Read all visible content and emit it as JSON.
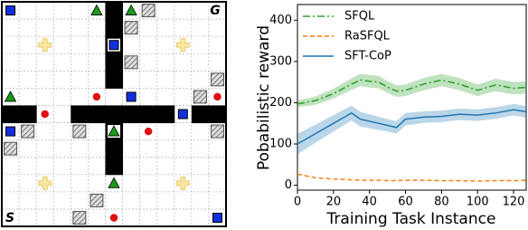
{
  "gridworld": {
    "goal_label": "G",
    "start_label": "S"
  },
  "chart_data": {
    "type": "line",
    "ylabel": "Pobabilistic reward",
    "xlabel": "Training Task Instance",
    "x": [
      0,
      10,
      20,
      30,
      35,
      40,
      45,
      50,
      55,
      60,
      70,
      80,
      90,
      100,
      110,
      120,
      127
    ],
    "xlim": [
      0,
      127
    ],
    "xticks": [
      0,
      20,
      40,
      60,
      80,
      100,
      120
    ],
    "ylim": [
      -12,
      438
    ],
    "yticks": [
      0,
      100,
      200,
      300,
      400
    ],
    "legend": "upper left",
    "series": [
      {
        "name": "SFQL",
        "color": "#2ca02c",
        "linestyle": "dashdot",
        "values": [
          197,
          205,
          222,
          245,
          255,
          252,
          250,
          238,
          228,
          230,
          245,
          255,
          245,
          230,
          243,
          235,
          237
        ],
        "error": [
          8,
          10,
          12,
          14,
          15,
          15,
          15,
          14,
          14,
          14,
          15,
          15,
          15,
          14,
          15,
          15,
          15
        ]
      },
      {
        "name": "RaSFQL",
        "color": "#ff7f0e",
        "linestyle": "dashed",
        "values": [
          27,
          18,
          15,
          13,
          12,
          12,
          12,
          11,
          11,
          12,
          12,
          11,
          11,
          10,
          11,
          11,
          12
        ]
      },
      {
        "name": "SFT-CoP",
        "color": "#1f77b4",
        "linestyle": "solid",
        "values": [
          100,
          125,
          150,
          175,
          160,
          155,
          150,
          145,
          140,
          160,
          165,
          167,
          172,
          170,
          175,
          183,
          178
        ],
        "error": [
          25,
          22,
          20,
          18,
          18,
          17,
          16,
          15,
          15,
          15,
          14,
          14,
          14,
          14,
          14,
          14,
          14
        ]
      }
    ]
  }
}
